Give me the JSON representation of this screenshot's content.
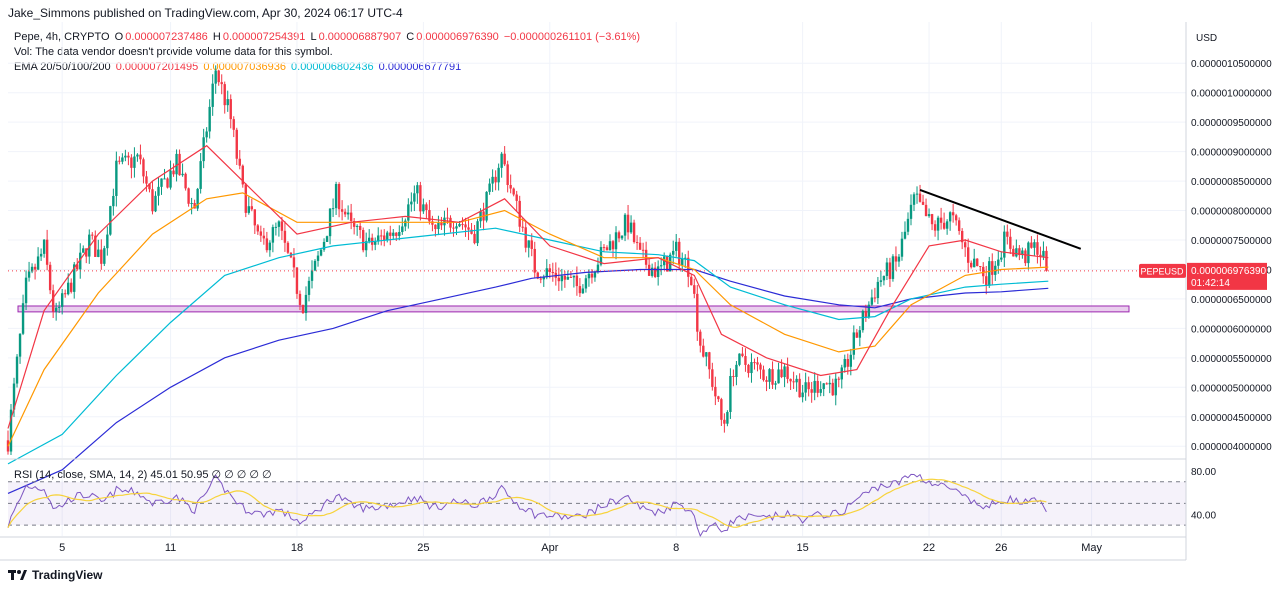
{
  "header": {
    "publisher_line": "Jake_Simmons published on TradingView.com, Apr 30, 2024 06:17 UTC-4"
  },
  "legend": {
    "symbol": "Pepe, 4h, CRYPTO",
    "open_label": "O",
    "open": "0.000007237486",
    "high_label": "H",
    "high": "0.000007254391",
    "low_label": "L",
    "low": "0.000006887907",
    "close_label": "C",
    "close": "0.000006976390",
    "change": "−0.000000261101 (−3.61%)",
    "vol_line": "Vol: The data vendor doesn't provide volume data for this symbol.",
    "ema_label": "EMA 20/50/100/200",
    "ema20": "0.000007201495",
    "ema50": "0.000007036936",
    "ema100": "0.000006802436",
    "ema200": "0.000006677791"
  },
  "currency_label": "USD",
  "price_tag": {
    "symbol": "PEPEUSD",
    "price": "0.000006976390",
    "countdown": "01:42:14"
  },
  "rsi_legend": "RSI (14, close, SMA, 14, 2)  45.01  50.95  ∅  ∅  ∅  ∅  ∅",
  "footer": {
    "logo_text": "TradingView"
  },
  "colors": {
    "up": "#089981",
    "down": "#f23645",
    "ema20": "#f23645",
    "ema50": "#ff9800",
    "ema100": "#00bcd4",
    "ema200": "#2b2bd6",
    "rsi": "#7e57c2",
    "rsi_sma": "#f7d33b",
    "zone": "#e1bee7",
    "zone_border": "#9c27b0"
  },
  "chart_data": {
    "type": "candlestick",
    "timeframe": "4h",
    "x_tick_labels": [
      "5",
      "11",
      "18",
      "25",
      "Apr",
      "8",
      "15",
      "22",
      "26",
      "May"
    ],
    "price_axis": {
      "labels": [
        "0.0000010500000",
        "0.0000010000000",
        "0.0000009500000",
        "0.0000009000000",
        "0.0000008500000",
        "0.0000008000000",
        "0.0000007500000",
        "0.0000007000000",
        "0.0000006500000",
        "0.0000006000000",
        "0.0000005500000",
        "0.0000005000000",
        "0.0000004500000",
        "0.0000004000000"
      ],
      "values": [
        10.5,
        10.0,
        9.5,
        9.0,
        8.5,
        8.0,
        7.5,
        7.0,
        6.5,
        6.0,
        5.5,
        5.0,
        4.5,
        4.0
      ],
      "unit_note": "values in 1e-6 USD",
      "range": [
        3.8,
        11.2
      ]
    },
    "rsi_axis": {
      "labels": [
        "80.00",
        "40.00"
      ],
      "values": [
        80,
        40
      ],
      "range": [
        20,
        90
      ],
      "band": [
        30,
        70
      ],
      "mid": 50
    },
    "support_zone": [
      6.28,
      6.38
    ],
    "current_price": 6.976,
    "anchors": [
      {
        "day": 2.0,
        "price": 4.1,
        "rsi": 30
      },
      {
        "day": 3.0,
        "price": 6.7,
        "rsi": 66
      },
      {
        "day": 4.0,
        "price": 7.35,
        "rsi": 64
      },
      {
        "day": 4.6,
        "price": 6.15,
        "rsi": 44
      },
      {
        "day": 5.6,
        "price": 6.85,
        "rsi": 56
      },
      {
        "day": 6.5,
        "price": 7.5,
        "rsi": 58
      },
      {
        "day": 7.2,
        "price": 7.2,
        "rsi": 50
      },
      {
        "day": 8.0,
        "price": 8.7,
        "rsi": 62
      },
      {
        "day": 9.2,
        "price": 8.9,
        "rsi": 60
      },
      {
        "day": 10.0,
        "price": 8.1,
        "rsi": 50
      },
      {
        "day": 11.3,
        "price": 8.8,
        "rsi": 56
      },
      {
        "day": 12.3,
        "price": 8.0,
        "rsi": 44
      },
      {
        "day": 13.5,
        "price": 10.4,
        "rsi": 72
      },
      {
        "day": 14.3,
        "price": 9.6,
        "rsi": 58
      },
      {
        "day": 15.0,
        "price": 8.3,
        "rsi": 46
      },
      {
        "day": 16.0,
        "price": 7.4,
        "rsi": 40
      },
      {
        "day": 17.0,
        "price": 7.7,
        "rsi": 44
      },
      {
        "day": 18.3,
        "price": 6.4,
        "rsi": 32
      },
      {
        "day": 19.3,
        "price": 7.3,
        "rsi": 46
      },
      {
        "day": 20.2,
        "price": 8.3,
        "rsi": 58
      },
      {
        "day": 21.0,
        "price": 7.7,
        "rsi": 48
      },
      {
        "day": 22.0,
        "price": 7.4,
        "rsi": 45
      },
      {
        "day": 23.5,
        "price": 7.7,
        "rsi": 50
      },
      {
        "day": 24.6,
        "price": 8.3,
        "rsi": 56
      },
      {
        "day": 25.6,
        "price": 7.6,
        "rsi": 46
      },
      {
        "day": 26.8,
        "price": 7.9,
        "rsi": 52
      },
      {
        "day": 27.8,
        "price": 7.6,
        "rsi": 48
      },
      {
        "day": 28.7,
        "price": 8.3,
        "rsi": 56
      },
      {
        "day": 29.3,
        "price": 8.95,
        "rsi": 63
      },
      {
        "day": 30.2,
        "price": 8.0,
        "rsi": 50
      },
      {
        "day": 31.2,
        "price": 7.0,
        "rsi": 40
      },
      {
        "day": 32.5,
        "price": 6.9,
        "rsi": 38
      },
      {
        "day": 33.5,
        "price": 6.7,
        "rsi": 37
      },
      {
        "day": 34.5,
        "price": 7.1,
        "rsi": 44
      },
      {
        "day": 35.5,
        "price": 7.5,
        "rsi": 52
      },
      {
        "day": 36.3,
        "price": 7.8,
        "rsi": 56
      },
      {
        "day": 37.0,
        "price": 7.2,
        "rsi": 46
      },
      {
        "day": 38.0,
        "price": 6.95,
        "rsi": 42
      },
      {
        "day": 39.0,
        "price": 7.3,
        "rsi": 50
      },
      {
        "day": 39.8,
        "price": 7.0,
        "rsi": 45
      },
      {
        "day": 40.3,
        "price": 5.8,
        "rsi": 22
      },
      {
        "day": 41.0,
        "price": 5.1,
        "rsi": 30
      },
      {
        "day": 41.6,
        "price": 4.3,
        "rsi": 25
      },
      {
        "day": 42.2,
        "price": 5.4,
        "rsi": 35
      },
      {
        "day": 43.0,
        "price": 5.4,
        "rsi": 37
      },
      {
        "day": 44.0,
        "price": 5.2,
        "rsi": 36
      },
      {
        "day": 45.0,
        "price": 5.3,
        "rsi": 40
      },
      {
        "day": 46.2,
        "price": 4.9,
        "rsi": 35
      },
      {
        "day": 47.0,
        "price": 5.1,
        "rsi": 40
      },
      {
        "day": 48.0,
        "price": 5.0,
        "rsi": 40
      },
      {
        "day": 49.0,
        "price": 5.9,
        "rsi": 54
      },
      {
        "day": 50.2,
        "price": 6.8,
        "rsi": 66
      },
      {
        "day": 51.2,
        "price": 7.1,
        "rsi": 68
      },
      {
        "day": 52.2,
        "price": 8.2,
        "rsi": 78
      },
      {
        "day": 53.2,
        "price": 7.7,
        "rsi": 68
      },
      {
        "day": 54.2,
        "price": 7.9,
        "rsi": 64
      },
      {
        "day": 55.2,
        "price": 7.2,
        "rsi": 52
      },
      {
        "day": 56.2,
        "price": 6.9,
        "rsi": 46
      },
      {
        "day": 57.2,
        "price": 7.5,
        "rsi": 55
      },
      {
        "day": 58.2,
        "price": 7.2,
        "rsi": 50
      },
      {
        "day": 59.0,
        "price": 7.4,
        "rsi": 52
      },
      {
        "day": 59.6,
        "price": 6.98,
        "rsi": 45
      }
    ],
    "ema20_path": [
      [
        2,
        4.3
      ],
      [
        4,
        6.3
      ],
      [
        7,
        7.6
      ],
      [
        10,
        8.5
      ],
      [
        13,
        9.1
      ],
      [
        15,
        8.5
      ],
      [
        18,
        7.6
      ],
      [
        21,
        7.8
      ],
      [
        24,
        7.9
      ],
      [
        27,
        7.8
      ],
      [
        29.5,
        8.2
      ],
      [
        32,
        7.4
      ],
      [
        35,
        7.1
      ],
      [
        38,
        7.2
      ],
      [
        40,
        6.9
      ],
      [
        41.5,
        5.9
      ],
      [
        44,
        5.5
      ],
      [
        47,
        5.2
      ],
      [
        49,
        5.3
      ],
      [
        51,
        6.4
      ],
      [
        53,
        7.4
      ],
      [
        55,
        7.5
      ],
      [
        57,
        7.3
      ],
      [
        59.6,
        7.2
      ]
    ],
    "ema50_path": [
      [
        2,
        4.0
      ],
      [
        4,
        5.3
      ],
      [
        7,
        6.6
      ],
      [
        10,
        7.6
      ],
      [
        13,
        8.2
      ],
      [
        15,
        8.3
      ],
      [
        18,
        7.8
      ],
      [
        21,
        7.8
      ],
      [
        24,
        7.8
      ],
      [
        27,
        7.8
      ],
      [
        29.5,
        8.0
      ],
      [
        32,
        7.6
      ],
      [
        35,
        7.2
      ],
      [
        38,
        7.2
      ],
      [
        40,
        7.0
      ],
      [
        42,
        6.4
      ],
      [
        45,
        5.9
      ],
      [
        48,
        5.6
      ],
      [
        50,
        5.7
      ],
      [
        52,
        6.4
      ],
      [
        55,
        6.9
      ],
      [
        57,
        7.0
      ],
      [
        59.6,
        7.04
      ]
    ],
    "ema100_path": [
      [
        2,
        3.7
      ],
      [
        5,
        4.2
      ],
      [
        8,
        5.2
      ],
      [
        11,
        6.1
      ],
      [
        14,
        6.9
      ],
      [
        17,
        7.2
      ],
      [
        20,
        7.4
      ],
      [
        23,
        7.5
      ],
      [
        26,
        7.6
      ],
      [
        29,
        7.7
      ],
      [
        32,
        7.5
      ],
      [
        35,
        7.3
      ],
      [
        38,
        7.25
      ],
      [
        40,
        7.15
      ],
      [
        42,
        6.7
      ],
      [
        45,
        6.4
      ],
      [
        48,
        6.15
      ],
      [
        50,
        6.2
      ],
      [
        52,
        6.5
      ],
      [
        55,
        6.7
      ],
      [
        57,
        6.75
      ],
      [
        59.6,
        6.8
      ]
    ],
    "ema200_path": [
      [
        2,
        3.2
      ],
      [
        5,
        3.6
      ],
      [
        8,
        4.4
      ],
      [
        11,
        5.0
      ],
      [
        14,
        5.5
      ],
      [
        17,
        5.8
      ],
      [
        20,
        6.0
      ],
      [
        23,
        6.3
      ],
      [
        26,
        6.5
      ],
      [
        29,
        6.7
      ],
      [
        31,
        6.85
      ],
      [
        34,
        6.95
      ],
      [
        37,
        7.0
      ],
      [
        40,
        7.0
      ],
      [
        42,
        6.8
      ],
      [
        45,
        6.55
      ],
      [
        48,
        6.4
      ],
      [
        50,
        6.35
      ],
      [
        52,
        6.5
      ],
      [
        55,
        6.6
      ],
      [
        57,
        6.62
      ],
      [
        59.6,
        6.68
      ]
    ],
    "trendline": [
      [
        52.5,
        8.35
      ],
      [
        61.4,
        7.35
      ]
    ]
  }
}
